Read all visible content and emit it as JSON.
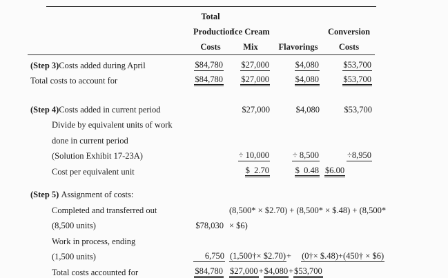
{
  "table": {
    "header": {
      "c1": [
        "Total",
        "Production",
        "Costs"
      ],
      "c2": [
        "",
        "Ice Cream",
        "Mix"
      ],
      "c3": [
        "",
        "",
        "Flavorings"
      ],
      "c4": [
        "",
        "Conversion",
        "Costs"
      ]
    },
    "rows": {
      "step3_costs_added": {
        "step": "(Step 3)",
        "label": "Costs added during April",
        "c1": "$84,780",
        "c2": "$27,000",
        "c3": "$4,080",
        "c4": "$53,700"
      },
      "total_to_account": {
        "label": "Total costs to account for",
        "c1": "$84,780",
        "c2": "$27,000",
        "c3": "$4,080",
        "c4": "$53,700"
      },
      "step4_costs_added": {
        "step": "(Step 4)",
        "label": "Costs added in current period",
        "c2": "$27,000",
        "c3": "$4,080",
        "c4": "$53,700"
      },
      "divide_line1": {
        "label": "Divide by equivalent units of work"
      },
      "divide_line2": {
        "label": "done in current period"
      },
      "solution_exhibit": {
        "label": "(Solution Exhibit 17-23A)",
        "c2": "÷ 10,000",
        "c3": "÷ 8,500",
        "c4": "÷8,950"
      },
      "cost_per_unit": {
        "label": "Cost per equivalent unit",
        "c2": "$  2.70",
        "c3": "$  0.48",
        "c4": "$6.00"
      },
      "step5_assignment": {
        "step": "(Step 5)",
        "label": " Assignment of costs:"
      },
      "completed_out": {
        "label": "Completed and transferred out",
        "formula": "(8,500* × $2.70) + (8,500* × $.48) + (8,500*"
      },
      "completed_units": {
        "label": "(8,500 units)",
        "c1": "$78,030",
        "formula": "× $6)"
      },
      "wip_ending": {
        "label": "Work in process, ending"
      },
      "wip_units": {
        "label": "(1,500 units)",
        "c1": "6,750",
        "f1": "(1,500†× $2.70)",
        "plus": "+",
        "f2": "(0†× $.48)+(450† × $6)"
      },
      "total_accounted": {
        "label": "Total costs accounted for",
        "c1": "$84,780",
        "f1": "$27,000",
        "p1": "+",
        "f2": "$4,080",
        "p2": "+",
        "f3": "$53,700"
      }
    }
  }
}
